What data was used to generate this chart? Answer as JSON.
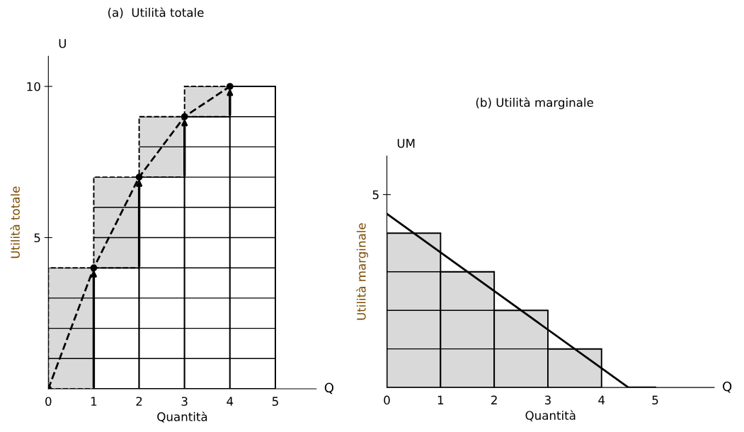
{
  "chart_data": [
    {
      "type": "bar",
      "title": "(a)  Utilità totale",
      "xlabel": "Quantità",
      "ylabel": "Utilità totale",
      "stacked": true,
      "grid": "y",
      "x": [
        0.5,
        1.5,
        2.5,
        3.5,
        4.5
      ],
      "xlim": [
        0,
        5.9
      ],
      "xticks": [
        0,
        1,
        2,
        3,
        4,
        5
      ],
      "ylim": [
        0,
        11
      ],
      "yticks": [
        {
          "value": 1,
          "label": null
        },
        {
          "value": 2,
          "label": null
        },
        {
          "value": 3,
          "label": null
        },
        {
          "value": 4,
          "label": null
        },
        5,
        {
          "value": 6,
          "label": null
        },
        {
          "value": 7,
          "label": null
        },
        {
          "value": 8,
          "label": null
        },
        {
          "value": 9,
          "label": null
        },
        10
      ],
      "annotations": [
        "Q",
        "U"
      ],
      "series": [
        {
          "color": "#ffffff",
          "line_style": "solid",
          "values": [
            0,
            4,
            7,
            9,
            10
          ]
        },
        {
          "color": "#d9d9d9",
          "line_style": "dashed",
          "values": [
            4,
            3,
            2,
            1,
            null
          ]
        },
        {
          "type": "line",
          "color": "#000000",
          "line_style": "dashed",
          "marker": "circle",
          "x": [
            0,
            1,
            2,
            3,
            4
          ],
          "values": [
            0,
            4,
            7,
            9,
            10
          ]
        }
      ]
    },
    {
      "type": "bar",
      "title": "(b) Utilità marginale",
      "xlabel": "Quantità",
      "ylabel": "Utilità marginale",
      "grid": "y",
      "x": [
        0.5,
        1.5,
        2.5,
        3.5
      ],
      "xlim": [
        0,
        6.1
      ],
      "xticks": [
        0,
        1,
        2,
        3,
        4,
        5
      ],
      "ylim": [
        0,
        6
      ],
      "yticks": [
        {
          "value": 1,
          "label": null
        },
        {
          "value": 2,
          "label": null
        },
        {
          "value": 3,
          "label": null
        },
        5
      ],
      "annotations": [
        "Q",
        "UM"
      ],
      "series": [
        {
          "color": "#d9d9d9",
          "line_style": "solid",
          "values": [
            4,
            3,
            2,
            1
          ]
        },
        {
          "type": "line",
          "color": "#000000",
          "line_style": "solid",
          "marker": "none",
          "x": [
            0,
            4.5,
            5
          ],
          "values": [
            4.5,
            0,
            0
          ]
        }
      ]
    }
  ]
}
